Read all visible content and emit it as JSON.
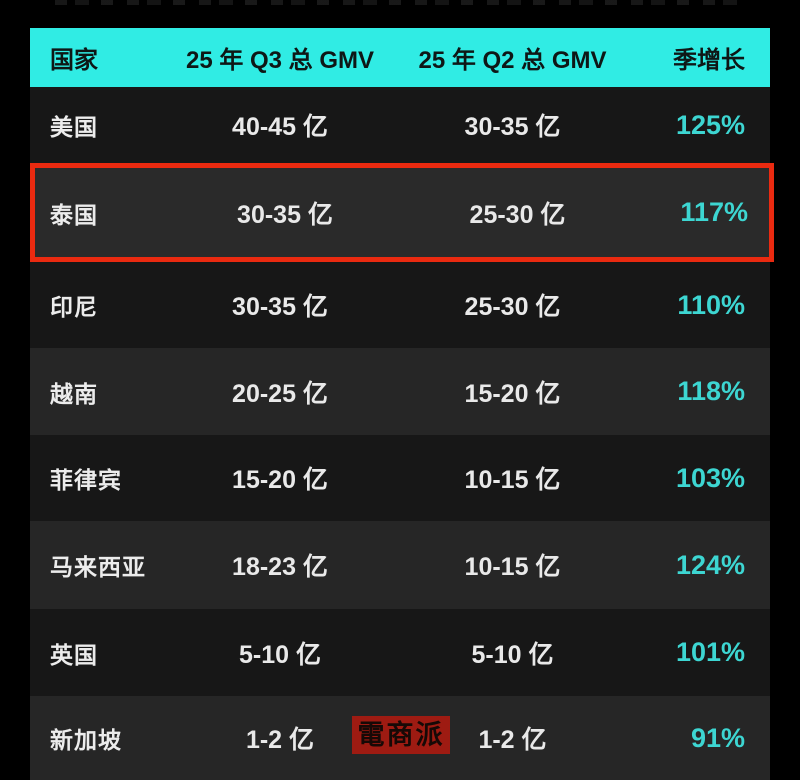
{
  "page": {
    "background_color": "#000000"
  },
  "table": {
    "header": {
      "bg_color": "#30ece4",
      "text_color": "#0e1716",
      "columns": [
        "国家",
        "25 年 Q3 总 GMV",
        "25 年 Q2 总 GMV",
        "季增长"
      ]
    },
    "rows": [
      {
        "country": "美国",
        "q3_gmv": "40-45 亿",
        "q2_gmv": "30-35 亿",
        "growth": "125%",
        "highlighted": false
      },
      {
        "country": "泰国",
        "q3_gmv": "30-35 亿",
        "q2_gmv": "25-30 亿",
        "growth": "117%",
        "highlighted": true
      },
      {
        "country": "印尼",
        "q3_gmv": "30-35 亿",
        "q2_gmv": "25-30 亿",
        "growth": "110%",
        "highlighted": false
      },
      {
        "country": "越南",
        "q3_gmv": "20-25 亿",
        "q2_gmv": "15-20 亿",
        "growth": "118%",
        "highlighted": false
      },
      {
        "country": "菲律宾",
        "q3_gmv": "15-20 亿",
        "q2_gmv": "10-15 亿",
        "growth": "103%",
        "highlighted": false
      },
      {
        "country": "马来西亚",
        "q3_gmv": "18-23 亿",
        "q2_gmv": "10-15 亿",
        "growth": "124%",
        "highlighted": false
      },
      {
        "country": "英国",
        "q3_gmv": "5-10 亿",
        "q2_gmv": "5-10 亿",
        "growth": "101%",
        "highlighted": false
      },
      {
        "country": "新加坡",
        "q3_gmv": "1-2 亿",
        "q2_gmv": "1-2 亿",
        "growth": "91%",
        "highlighted": false
      }
    ],
    "growth_text_color": "#3dd6d2",
    "row_dark_color": "#171717",
    "row_light_color": "#262626",
    "highlight_border_color": "#ea2a10"
  },
  "watermark": {
    "text": "電商派",
    "bg_color": "#9e1b12",
    "text_color": "#170906"
  },
  "chart_data": {
    "type": "table",
    "title": "",
    "columns": [
      "国家",
      "25年Q3总GMV",
      "25年Q2总GMV",
      "季增长"
    ],
    "rows": [
      [
        "美国",
        "40-45亿",
        "30-35亿",
        "125%"
      ],
      [
        "泰国",
        "30-35亿",
        "25-30亿",
        "117%"
      ],
      [
        "印尼",
        "30-35亿",
        "25-30亿",
        "110%"
      ],
      [
        "越南",
        "20-25亿",
        "15-20亿",
        "118%"
      ],
      [
        "菲律宾",
        "15-20亿",
        "10-15亿",
        "103%"
      ],
      [
        "马来西亚",
        "18-23亿",
        "10-15亿",
        "124%"
      ],
      [
        "英国",
        "5-10亿",
        "5-10亿",
        "101%"
      ],
      [
        "新加坡",
        "1-2亿",
        "1-2亿",
        "91%"
      ]
    ],
    "growth_values_pct": [
      125,
      117,
      110,
      118,
      103,
      124,
      101,
      91
    ],
    "highlighted_row": "泰国",
    "gmv_unit": "亿"
  }
}
